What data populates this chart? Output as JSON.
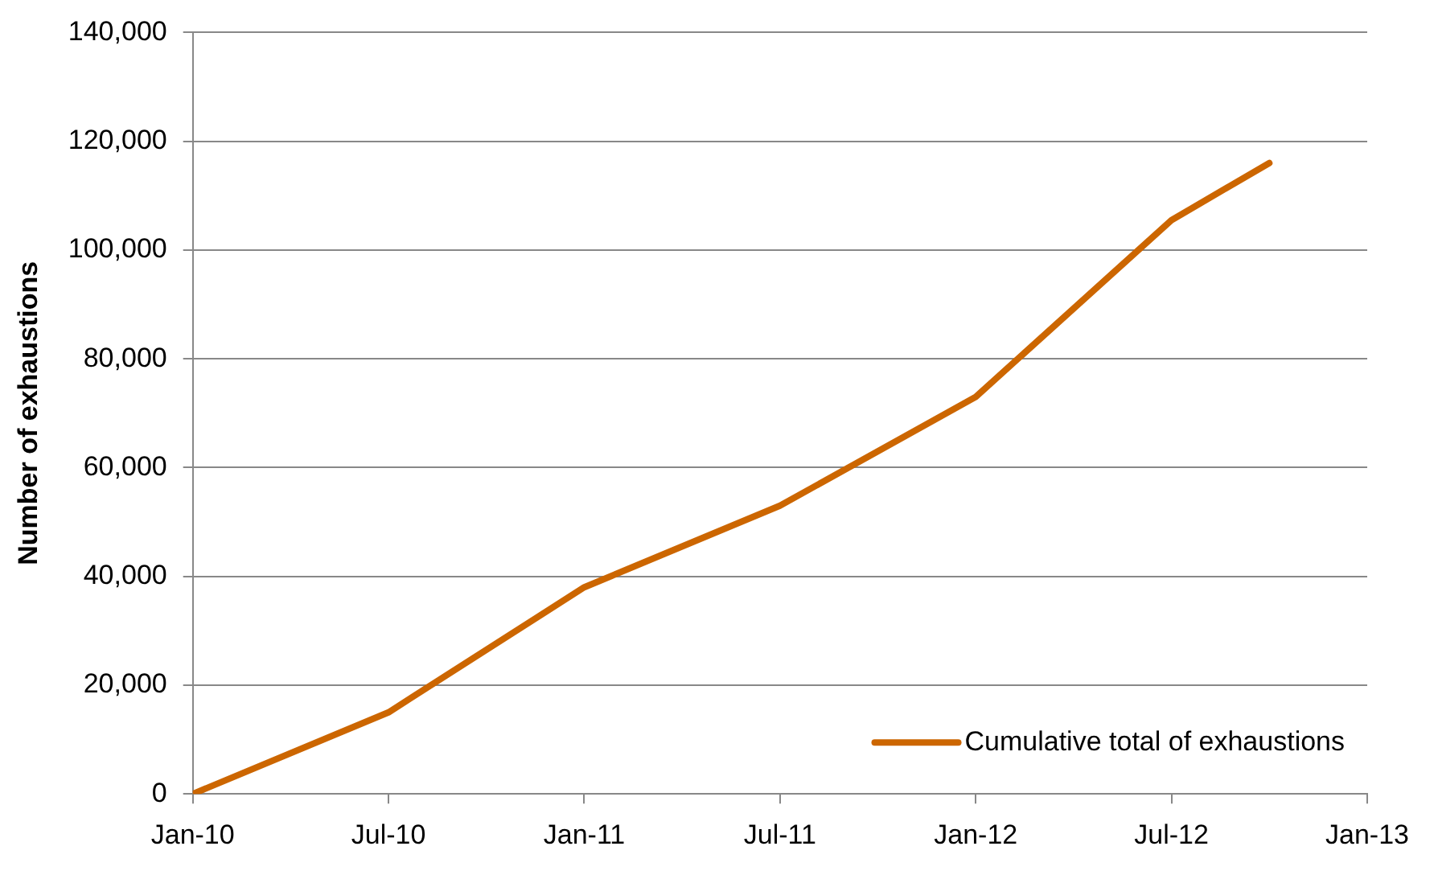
{
  "chart_data": {
    "type": "line",
    "ylabel": "Number of exhaustions",
    "x": [
      "2010-01",
      "2010-07",
      "2011-01",
      "2011-07",
      "2012-01",
      "2012-07",
      "2012-10"
    ],
    "series": [
      {
        "name": "Cumulative total of exhaustions",
        "color": "#cc6600",
        "values": [
          0,
          15000,
          38000,
          53000,
          73000,
          105500,
          116000
        ]
      }
    ],
    "xlim": [
      "2010-01",
      "2013-01"
    ],
    "xticks": [
      {
        "value": "2010-01",
        "label": "Jan-10"
      },
      {
        "value": "2010-07",
        "label": "Jul-10"
      },
      {
        "value": "2011-01",
        "label": "Jan-11"
      },
      {
        "value": "2011-07",
        "label": "Jul-11"
      },
      {
        "value": "2012-01",
        "label": "Jan-12"
      },
      {
        "value": "2012-07",
        "label": "Jul-12"
      },
      {
        "value": "2013-01",
        "label": "Jan-13"
      }
    ],
    "ylim": [
      0,
      140000
    ],
    "yticks": [
      {
        "value": 0,
        "label": "0"
      },
      {
        "value": 20000,
        "label": "20,000"
      },
      {
        "value": 40000,
        "label": "40,000"
      },
      {
        "value": 60000,
        "label": "60,000"
      },
      {
        "value": 80000,
        "label": "80,000"
      },
      {
        "value": 100000,
        "label": "100,000"
      },
      {
        "value": 120000,
        "label": "120,000"
      },
      {
        "value": 140000,
        "label": "140,000"
      }
    ],
    "grid": "y",
    "legend": "bottom right",
    "marker": "none",
    "line_style": "solid"
  }
}
